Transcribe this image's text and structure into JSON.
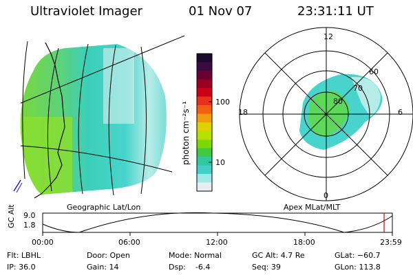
{
  "header": {
    "instrument": "Ultraviolet Imager",
    "date": "01 Nov 07",
    "time": "23:31:11 UT"
  },
  "left_panel": {
    "caption": "Geographic Lat/Lon"
  },
  "right_panel": {
    "caption": "Apex MLat/MLT",
    "mlt_labels": [
      "12",
      "18",
      "6",
      "0"
    ],
    "mlat_labels": [
      "60",
      "70",
      "80"
    ]
  },
  "colorbar": {
    "label": "photon cm⁻²s⁻¹",
    "scale": "log",
    "ticks": [
      "100",
      "10"
    ],
    "colors": [
      "#1a0a2e",
      "#3a0a40",
      "#6a0030",
      "#9a0020",
      "#c80018",
      "#e8301a",
      "#f06010",
      "#f39c12",
      "#e0d000",
      "#b8e000",
      "#7cd800",
      "#40c840",
      "#30c8a0",
      "#40d0c8",
      "#a0e8e8",
      "#e8eef0"
    ]
  },
  "altitude_plot": {
    "ylabel": "GC Alt",
    "yticks": [
      "9.0",
      "1.8"
    ],
    "xticks": [
      "00:00",
      "06:00",
      "12:00",
      "18:00",
      "23:59"
    ]
  },
  "status": {
    "flt": "Flt: LBHL",
    "ip": "IP: 36.0",
    "door": "Door: Open",
    "gain": "Gain: 14",
    "mode": "Mode: Normal",
    "dsp": "Dsp:    -6.4",
    "gcalt": "GC Alt: 4.7 Re",
    "seq": "Seq: 39",
    "glat": "GLat: −60.7",
    "glon": "GLon: 113.8"
  }
}
